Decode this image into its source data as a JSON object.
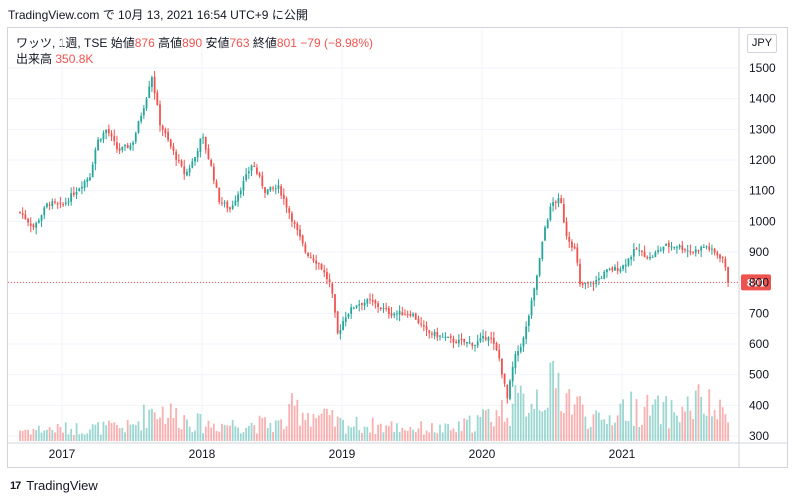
{
  "header": {
    "caption": "TradingView.com で 10月 13, 2021 16:54 UTC+9 に公開"
  },
  "legend": {
    "symbol": "ワッツ, 1週, TSE",
    "open_label": "始値",
    "open": "876",
    "high_label": "高値",
    "high": "890",
    "low_label": "安値",
    "low": "763",
    "close_label": "終値",
    "close": "801",
    "change": "−79 (−8.98%)",
    "volume_label": "出来高",
    "volume": "350.8K"
  },
  "currency": "JPY",
  "last_price_label": "801",
  "footer": {
    "logo": "17",
    "brand": "TradingView"
  },
  "colors": {
    "up": "#26a69a",
    "down": "#ef5350",
    "grid": "#f0f3fa",
    "text": "#131722"
  },
  "chart_data": {
    "type": "candlestick",
    "y_ticks": [
      "1500",
      "1400",
      "1300",
      "1200",
      "1100",
      "1000",
      "900",
      "800",
      "700",
      "600",
      "500",
      "400",
      "300"
    ],
    "x_ticks": [
      "2017",
      "2018",
      "2019",
      "2020",
      "2021"
    ],
    "ylim": [
      300,
      1520
    ],
    "last_price": 801,
    "anchors": [
      [
        2016.7,
        1030
      ],
      [
        2016.8,
        980
      ],
      [
        2016.9,
        1060
      ],
      [
        2017.0,
        1050
      ],
      [
        2017.1,
        1100
      ],
      [
        2017.2,
        1150
      ],
      [
        2017.25,
        1260
      ],
      [
        2017.32,
        1300
      ],
      [
        2017.4,
        1230
      ],
      [
        2017.5,
        1250
      ],
      [
        2017.6,
        1400
      ],
      [
        2017.64,
        1480
      ],
      [
        2017.7,
        1320
      ],
      [
        2017.78,
        1240
      ],
      [
        2017.88,
        1150
      ],
      [
        2017.95,
        1210
      ],
      [
        2018.0,
        1280
      ],
      [
        2018.07,
        1170
      ],
      [
        2018.12,
        1070
      ],
      [
        2018.2,
        1040
      ],
      [
        2018.3,
        1130
      ],
      [
        2018.36,
        1190
      ],
      [
        2018.45,
        1100
      ],
      [
        2018.55,
        1110
      ],
      [
        2018.65,
        1000
      ],
      [
        2018.74,
        900
      ],
      [
        2018.84,
        860
      ],
      [
        2018.92,
        790
      ],
      [
        2018.97,
        630
      ],
      [
        2019.02,
        690
      ],
      [
        2019.1,
        730
      ],
      [
        2019.2,
        740
      ],
      [
        2019.27,
        720
      ],
      [
        2019.35,
        700
      ],
      [
        2019.5,
        700
      ],
      [
        2019.6,
        640
      ],
      [
        2019.8,
        610
      ],
      [
        2019.95,
        600
      ],
      [
        2020.05,
        630
      ],
      [
        2020.12,
        560
      ],
      [
        2020.18,
        420
      ],
      [
        2020.23,
        550
      ],
      [
        2020.3,
        620
      ],
      [
        2020.38,
        790
      ],
      [
        2020.45,
        980
      ],
      [
        2020.5,
        1060
      ],
      [
        2020.56,
        1070
      ],
      [
        2020.6,
        960
      ],
      [
        2020.67,
        900
      ],
      [
        2020.7,
        790
      ],
      [
        2020.8,
        800
      ],
      [
        2020.9,
        840
      ],
      [
        2021.0,
        850
      ],
      [
        2021.1,
        910
      ],
      [
        2021.2,
        880
      ],
      [
        2021.3,
        920
      ],
      [
        2021.4,
        920
      ],
      [
        2021.5,
        900
      ],
      [
        2021.6,
        920
      ],
      [
        2021.65,
        900
      ],
      [
        2021.72,
        880
      ],
      [
        2021.76,
        801
      ]
    ],
    "volume_pattern": [
      [
        2016.7,
        0.2
      ],
      [
        2017.5,
        0.25
      ],
      [
        2017.65,
        0.6
      ],
      [
        2018.0,
        0.3
      ],
      [
        2018.6,
        0.3
      ],
      [
        2018.65,
        0.6
      ],
      [
        2019.0,
        0.3
      ],
      [
        2019.8,
        0.2
      ],
      [
        2020.2,
        0.6
      ],
      [
        2020.45,
        0.9
      ],
      [
        2020.55,
        1.0
      ],
      [
        2020.65,
        0.7
      ],
      [
        2020.85,
        0.3
      ],
      [
        2021.0,
        0.6
      ],
      [
        2021.4,
        0.5
      ],
      [
        2021.55,
        0.7
      ],
      [
        2021.76,
        0.4
      ]
    ]
  }
}
